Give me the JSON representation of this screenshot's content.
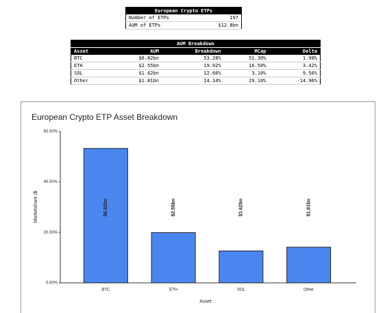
{
  "summary_table": {
    "title": "European Crypto ETPs",
    "rows": [
      [
        "Number of ETPs",
        "197"
      ],
      [
        "AUM of ETPs",
        "$12.8bn"
      ]
    ]
  },
  "breakdown_table": {
    "title": "AUM Breakdown",
    "header": [
      "Asset",
      "AUM",
      "Breakdown",
      "MCap",
      "Delta"
    ],
    "rows": [
      [
        "BTC",
        "$6.82bn",
        "53.28%",
        "51.30%",
        "1.98%"
      ],
      [
        "ETH",
        "$2.55bn",
        "19.92%",
        "16.50%",
        "3.42%"
      ],
      [
        "SOL",
        "$1.62bn",
        "12.66%",
        "3.10%",
        "9.56%"
      ],
      [
        "Other",
        "$1.81bn",
        "14.14%",
        "29.10%",
        "-14.96%"
      ]
    ]
  },
  "chart_data": {
    "type": "bar",
    "title": "European Crypto ETP Asset Breakdown",
    "x_label": "Asset",
    "y_label": "Marketshare ($",
    "categories": [
      "BTC",
      "ETH",
      "SOL",
      "Other"
    ],
    "values": [
      53.28,
      19.92,
      12.66,
      14.14
    ],
    "value_labels": [
      "$6.82bn",
      "$2.55bn",
      "$1.62bn",
      "$1.81bn"
    ],
    "color": "#4a86f0",
    "ylim": [
      0,
      60
    ],
    "yticks": [
      {
        "value": 0,
        "label": "0.00%"
      },
      {
        "value": 20,
        "label": "20.00%"
      },
      {
        "value": 40,
        "label": "40.00%"
      },
      {
        "value": 60,
        "label": "60.00%"
      }
    ],
    "grid": false
  }
}
